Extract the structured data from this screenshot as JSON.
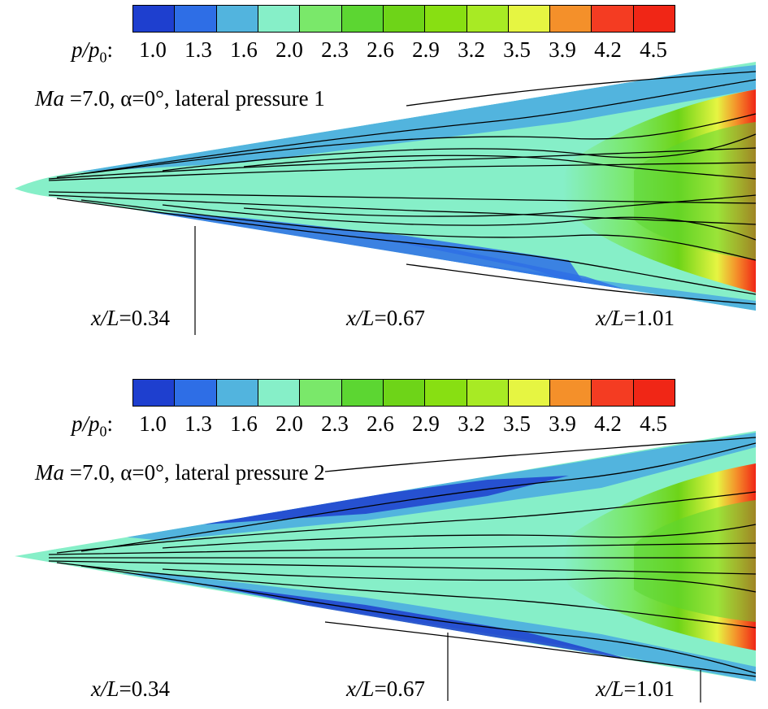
{
  "colorbar": {
    "label_symbol": "p/p",
    "label_sub": "0",
    "label_suffix": ":",
    "ticks": [
      "1.0",
      "1.3",
      "1.6",
      "2.0",
      "2.3",
      "2.6",
      "2.9",
      "3.2",
      "3.5",
      "3.9",
      "4.2",
      "4.5"
    ],
    "colors": [
      "#1e3fcf",
      "#2e6ee6",
      "#52b4de",
      "#86efc8",
      "#7ae86a",
      "#5cd632",
      "#6ed418",
      "#88df12",
      "#a8ea24",
      "#e6f542",
      "#f4902a",
      "#f43c22",
      "#f02616"
    ]
  },
  "panels": [
    {
      "title_ma": "Ma",
      "title_rest": " =7.0, α=0°, lateral pressure 1",
      "stations": [
        {
          "var": "x/L",
          "value": "=0.34"
        },
        {
          "var": "x/L",
          "value": "=0.67"
        },
        {
          "var": "x/L",
          "value": "=1.01"
        }
      ]
    },
    {
      "title_ma": "Ma",
      "title_rest": " =7.0, α=0°, lateral pressure 2",
      "stations": [
        {
          "var": "x/L",
          "value": "=0.34"
        },
        {
          "var": "x/L",
          "value": "=0.67"
        },
        {
          "var": "x/L",
          "value": "=1.01"
        }
      ]
    }
  ]
}
